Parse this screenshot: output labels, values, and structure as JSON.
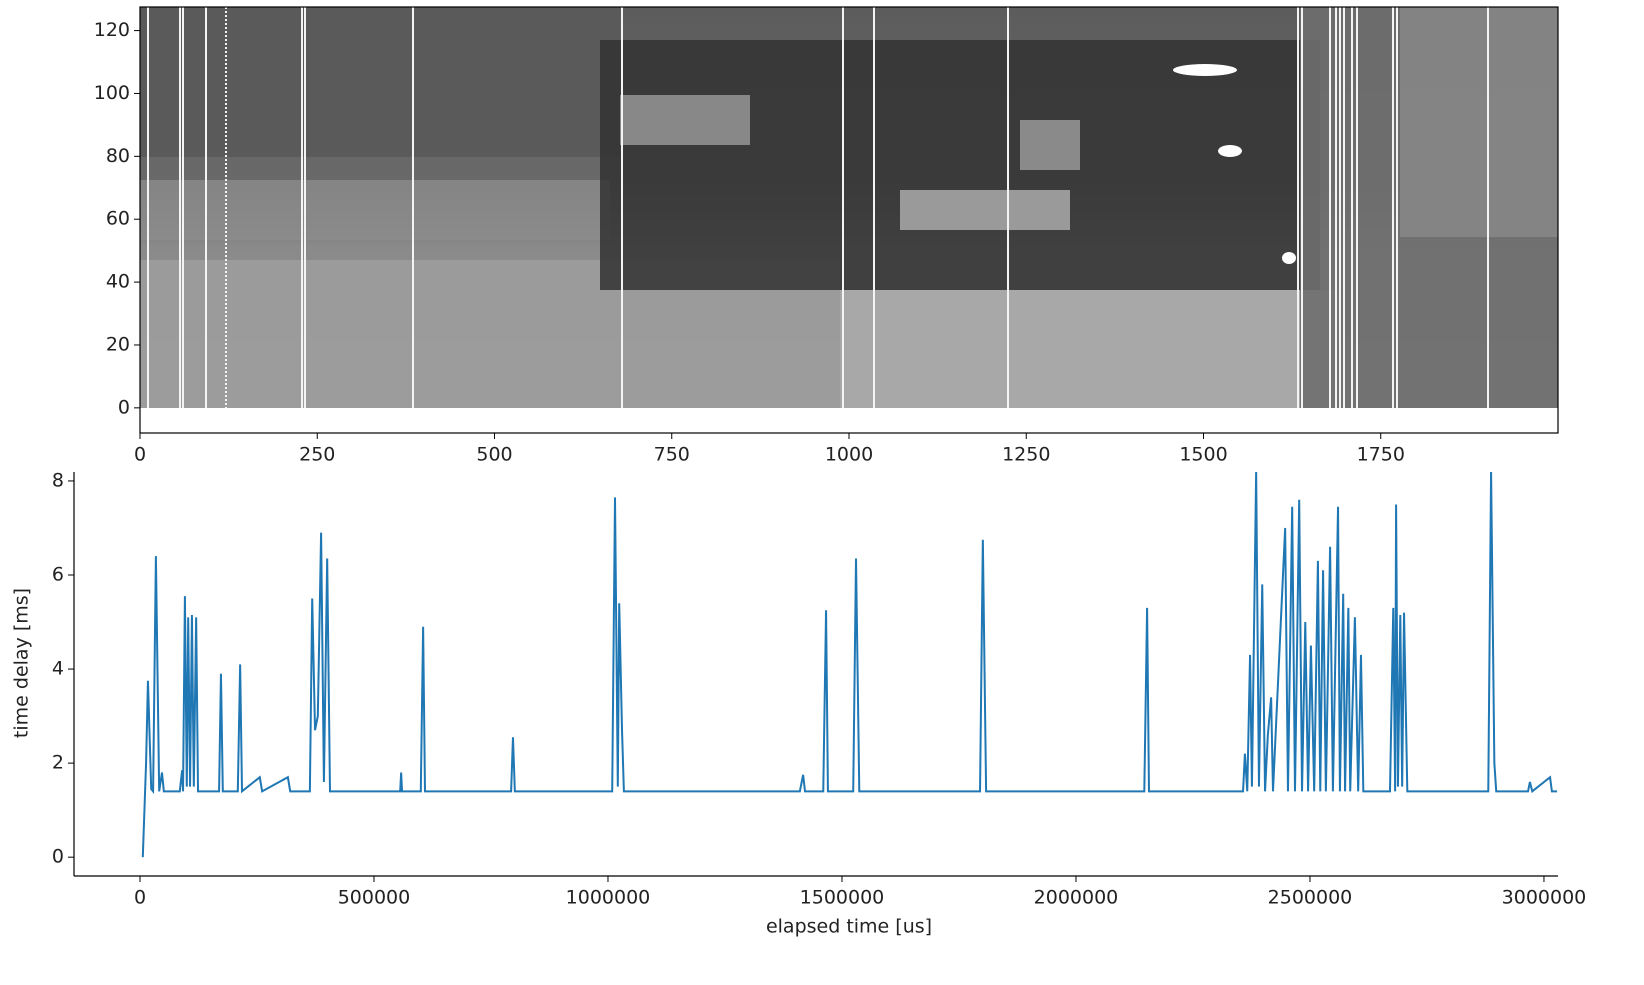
{
  "chart_data": [
    {
      "type": "image",
      "xlim": [
        0,
        2000
      ],
      "xticks": [
        0,
        250,
        500,
        750,
        1000,
        1250,
        1500,
        1750
      ],
      "ylim": [
        -8,
        127.5
      ],
      "yticks": [
        0,
        20,
        40,
        60,
        80,
        100,
        120
      ]
    },
    {
      "type": "line",
      "xlabel": "elapsed time [us]",
      "ylabel": "time delay [ms]",
      "color": "#1f77b4",
      "xlim": [
        -141000,
        3030000
      ],
      "xticks": [
        0,
        500000,
        1000000,
        1500000,
        2000000,
        2500000,
        3000000
      ],
      "ylim": [
        -0.4,
        8.19
      ],
      "yticks": [
        0,
        2,
        4,
        6,
        8
      ],
      "x": [
        6000,
        13000,
        17000,
        24000,
        28000,
        34000,
        41000,
        47000,
        51000,
        85000,
        90000,
        92000,
        96000,
        100000,
        103000,
        107000,
        111000,
        115000,
        120000,
        124000,
        169000,
        173000,
        177000,
        209000,
        214000,
        218000,
        256000,
        261000,
        316000,
        321000,
        363000,
        368000,
        374000,
        380000,
        387000,
        393000,
        400000,
        406000,
        556000,
        558000,
        560000,
        600000,
        605000,
        609000,
        793000,
        797000,
        801000,
        1009000,
        1015000,
        1021000,
        1024000,
        1030000,
        1034000,
        1410000,
        1417000,
        1421000,
        1460000,
        1466000,
        1470000,
        1524000,
        1530000,
        1537000,
        1795000,
        1801000,
        1808000,
        2146000,
        2152000,
        2156000,
        2357000,
        2361000,
        2366000,
        2372000,
        2376000,
        2385000,
        2391000,
        2398000,
        2404000,
        2410000,
        2417000,
        2421000,
        2447000,
        2453000,
        2462000,
        2468000,
        2477000,
        2483000,
        2490000,
        2496000,
        2502000,
        2509000,
        2517000,
        2522000,
        2528000,
        2534000,
        2543000,
        2549000,
        2560000,
        2564000,
        2571000,
        2575000,
        2582000,
        2586000,
        2596000,
        2603000,
        2609000,
        2614000,
        2671000,
        2678000,
        2682000,
        2684000,
        2688000,
        2693000,
        2697000,
        2701000,
        2708000,
        2881000,
        2887000,
        2894000,
        2898000,
        2966000,
        2970000,
        2975000,
        3013000,
        3017000,
        3028000
      ],
      "values": [
        0,
        2.0,
        3.75,
        1.45,
        1.4,
        6.4,
        1.4,
        1.8,
        1.4,
        1.4,
        1.85,
        1.4,
        5.55,
        1.5,
        5.1,
        1.5,
        5.15,
        1.5,
        5.1,
        1.4,
        1.4,
        3.9,
        1.4,
        1.4,
        4.1,
        1.4,
        1.7,
        1.4,
        1.7,
        1.4,
        1.4,
        5.5,
        2.7,
        3.0,
        6.9,
        1.6,
        6.35,
        1.4,
        1.4,
        1.8,
        1.4,
        1.4,
        4.9,
        1.4,
        1.4,
        2.55,
        1.4,
        1.4,
        7.65,
        1.5,
        5.4,
        2.7,
        1.4,
        1.4,
        1.75,
        1.4,
        1.4,
        5.25,
        1.4,
        1.4,
        6.35,
        1.4,
        1.4,
        6.75,
        1.4,
        1.4,
        5.3,
        1.4,
        1.4,
        2.2,
        1.4,
        4.3,
        1.5,
        8.2,
        1.5,
        5.8,
        1.4,
        2.6,
        3.4,
        1.4,
        7.0,
        1.4,
        7.45,
        1.4,
        7.6,
        1.4,
        5.0,
        1.4,
        4.5,
        1.4,
        6.3,
        1.4,
        6.1,
        1.4,
        6.6,
        1.4,
        7.45,
        1.4,
        5.6,
        1.4,
        5.3,
        1.4,
        5.1,
        1.4,
        4.3,
        1.4,
        1.4,
        5.3,
        1.4,
        7.5,
        1.5,
        5.15,
        1.5,
        5.2,
        1.4,
        1.4,
        8.2,
        2.0,
        1.4,
        1.4,
        1.6,
        1.4,
        1.7,
        1.4,
        1.4
      ]
    }
  ]
}
